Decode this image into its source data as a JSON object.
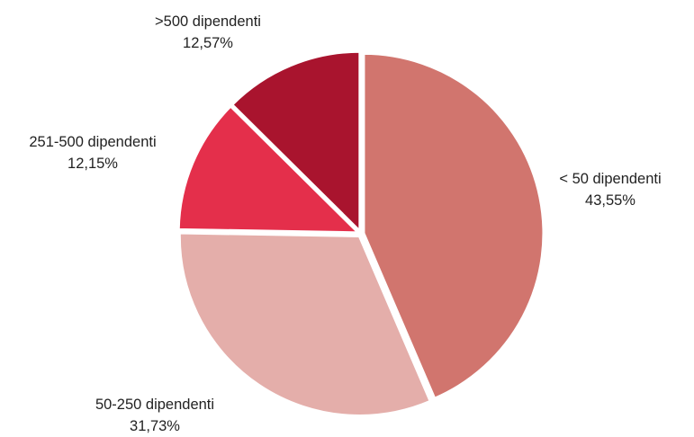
{
  "chart_data": {
    "type": "pie",
    "title": "",
    "slices": [
      {
        "label": "< 50 dipendenti",
        "value": 43.55,
        "value_label": "43,55%",
        "color": "#d1756e"
      },
      {
        "label": "50-250 dipendenti",
        "value": 31.73,
        "value_label": "31,73%",
        "color": "#e4aeaa"
      },
      {
        "label": "251-500 dipendenti",
        "value": 12.15,
        "value_label": "12,15%",
        "color": "#e42f4b"
      },
      {
        "label": ">500 dipendenti",
        "value": 12.57,
        "value_label": "12,57%",
        "color": "#a9142e"
      }
    ],
    "start_angle_deg": 0,
    "direction": "clockwise",
    "legend": "none"
  }
}
